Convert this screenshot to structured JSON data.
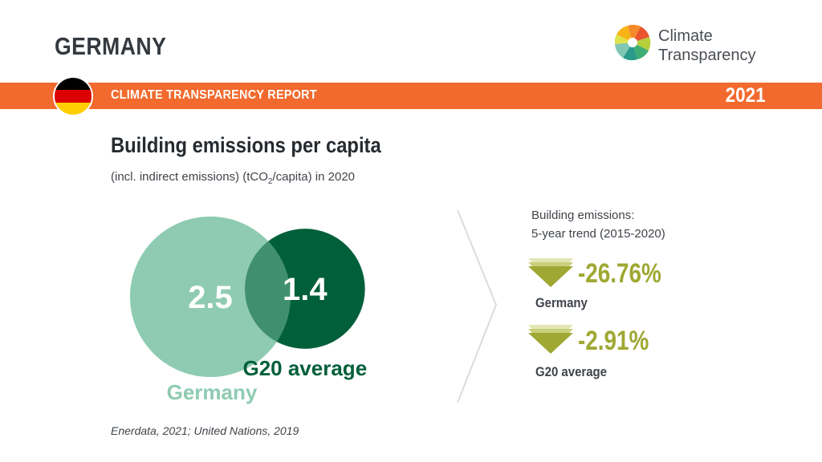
{
  "header": {
    "country": "GERMANY",
    "logo_text_line1": "Climate",
    "logo_text_line2": "Transparency",
    "report_title": "CLIMATE TRANSPARENCY REPORT",
    "year": "2021"
  },
  "colors": {
    "orange_band": "#f26a2d",
    "germany_circle": "#8ecbb2",
    "g20_circle": "#015f3a",
    "trend_green": "#9fa832",
    "flag": [
      "#000000",
      "#dd0000",
      "#ffce00"
    ]
  },
  "title": "Building emissions per capita",
  "subtitle": {
    "before": "(incl. indirect emissions) (tCO",
    "sub": "2",
    "after": "/capita) in 2020"
  },
  "chart_data": {
    "type": "bubble",
    "title": "Building emissions per capita",
    "unit": "tCO2/capita",
    "year": "2020",
    "series": [
      {
        "name": "Germany",
        "value": 2.5,
        "label": "2.5",
        "color": "#8ecbb2"
      },
      {
        "name": "G20 average",
        "value": 1.4,
        "label": "1.4",
        "color": "#015f3a"
      }
    ]
  },
  "trend": {
    "heading_line1": "Building emissions:",
    "heading_line2": "5-year trend (2015-2020)",
    "items": [
      {
        "value": "-26.76%",
        "name": "Germany"
      },
      {
        "value": "-2.91%",
        "name": "G20 average"
      }
    ]
  },
  "source": "Enerdata, 2021; United Nations, 2019"
}
